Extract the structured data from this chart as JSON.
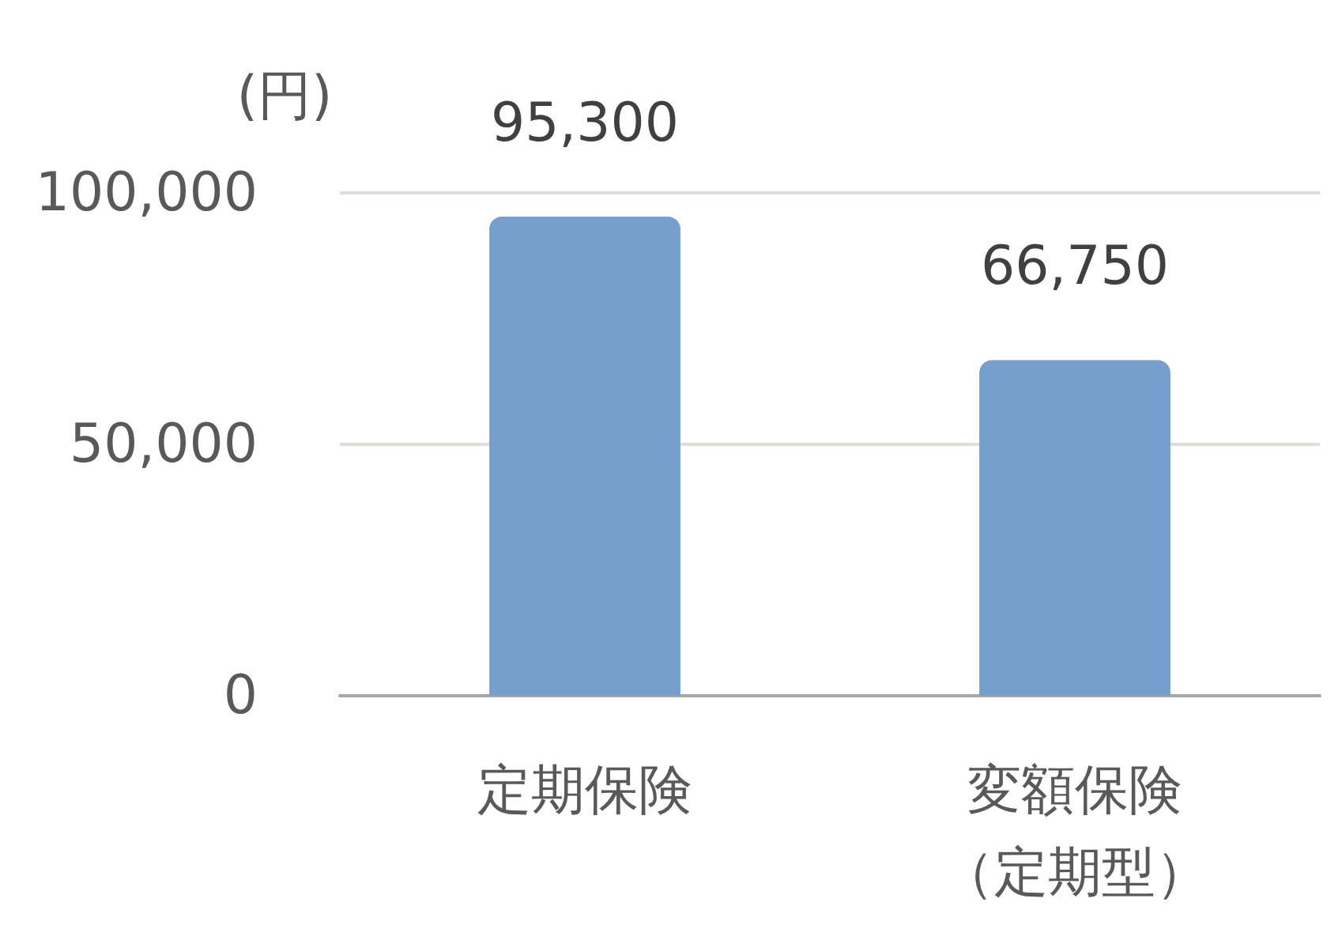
{
  "chart_data": {
    "type": "bar",
    "ylabel": "(円)",
    "categories": [
      "定期保険",
      "変額保険（定期型）"
    ],
    "values": [
      95300,
      66750
    ],
    "color": "#759fcc",
    "value_labels": [
      "95,300",
      "66,750"
    ],
    "ylim": [
      0,
      100000
    ],
    "yticks": [
      0,
      {
        "value": 50000,
        "label": "50,000"
      },
      {
        "value": 100000,
        "label": "100,000"
      }
    ],
    "grid": "y"
  }
}
